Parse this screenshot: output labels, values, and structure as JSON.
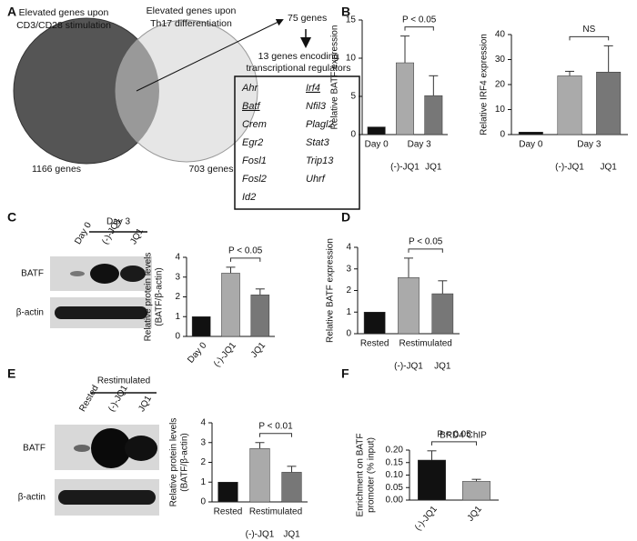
{
  "panel_labels": [
    "A",
    "B",
    "C",
    "D",
    "E",
    "F"
  ],
  "venn": {
    "left_label": [
      "Elevated genes upon",
      "CD3/CD28 stimulation"
    ],
    "right_label": [
      "Elevated genes upon",
      "Th17 differentiation"
    ],
    "left_count": "1166 genes",
    "right_count": "703 genes",
    "overlap": "75 genes",
    "subset": [
      "13 genes encoding",
      "transcriptional regulators"
    ],
    "genes_left": [
      "Ahr",
      "Batf",
      "Crem",
      "Egr2",
      "Fosl1",
      "Fosl2",
      "Id2"
    ],
    "genes_right": [
      "Irf4",
      "Nfil3",
      "Plagl2",
      "Stat3",
      "Trip13",
      "Uhrf"
    ]
  },
  "blots": [
    {
      "group": "Day 3",
      "lanes": [
        "Day 0",
        "(-)-JQ1",
        "JQ1"
      ],
      "rows": [
        "BATF",
        "β-actin"
      ]
    },
    {
      "group": "Restimulated",
      "lanes": [
        "Rested",
        "(-)-JQ1",
        "JQ1"
      ],
      "rows": [
        "BATF",
        "β-actin"
      ]
    }
  ],
  "chart_data": [
    {
      "type": "bar",
      "ylabel": [
        "Relative BATF expression"
      ],
      "categories": [
        "Day 0",
        "(-)-JQ1",
        "JQ1"
      ],
      "group_label": "Day 3",
      "values": [
        1,
        9.4,
        5.1
      ],
      "errors": [
        0,
        3.5,
        2.6
      ],
      "colors": [
        "#111111",
        "#aaaaaa",
        "#777777"
      ],
      "ylim": [
        0,
        15
      ],
      "yticks": [
        0,
        5,
        10,
        15
      ],
      "annotation": "P < 0.05"
    },
    {
      "type": "bar",
      "ylabel": [
        "Relative IRF4 expression"
      ],
      "categories": [
        "Day 0",
        "(-)-JQ1",
        "JQ1"
      ],
      "group_label": "Day 3",
      "values": [
        1,
        23.5,
        25
      ],
      "errors": [
        0,
        1.8,
        10.5
      ],
      "colors": [
        "#111111",
        "#aaaaaa",
        "#777777"
      ],
      "ylim": [
        0,
        40
      ],
      "yticks": [
        0,
        10,
        20,
        30,
        40
      ],
      "annotation": "NS"
    },
    {
      "type": "bar",
      "ylabel": [
        "Relative protein levels",
        "(BATF/β-actin)"
      ],
      "categories": [
        "Day 0",
        "(-)-JQ1",
        "JQ1"
      ],
      "values": [
        1,
        3.2,
        2.1
      ],
      "errors": [
        0,
        0.3,
        0.3
      ],
      "colors": [
        "#111111",
        "#aaaaaa",
        "#777777"
      ],
      "ylim": [
        0,
        4
      ],
      "yticks": [
        0,
        1,
        2,
        3,
        4
      ],
      "annotation": "P < 0.05",
      "rotated_labels": true
    },
    {
      "type": "bar",
      "ylabel": [
        "Relative BATF expression"
      ],
      "categories": [
        "Rested",
        "(-)-JQ1",
        "JQ1"
      ],
      "group_label": "Restimulated",
      "values": [
        1,
        2.6,
        1.85
      ],
      "errors": [
        0,
        0.9,
        0.6
      ],
      "colors": [
        "#111111",
        "#aaaaaa",
        "#777777"
      ],
      "ylim": [
        0,
        4
      ],
      "yticks": [
        0,
        1,
        2,
        3,
        4
      ],
      "annotation": "P < 0.05"
    },
    {
      "type": "bar",
      "ylabel": [
        "Relative protein levels",
        "(BATF/β-actin)"
      ],
      "categories": [
        "Rested",
        "(-)-JQ1",
        "JQ1"
      ],
      "group_label": "Restimulated",
      "values": [
        1,
        2.7,
        1.5
      ],
      "errors": [
        0,
        0.3,
        0.3
      ],
      "colors": [
        "#111111",
        "#aaaaaa",
        "#777777"
      ],
      "ylim": [
        0,
        4
      ],
      "yticks": [
        0,
        1,
        2,
        3,
        4
      ],
      "annotation": "P < 0.01"
    },
    {
      "type": "bar",
      "title": "BRD4 ChIP",
      "ylabel": [
        "Enrichment on BATF",
        "promoter (% input)"
      ],
      "categories": [
        "(-)-JQ1",
        "JQ1"
      ],
      "values": [
        0.16,
        0.075
      ],
      "errors": [
        0.037,
        0.008
      ],
      "colors": [
        "#111111",
        "#aaaaaa"
      ],
      "ylim": [
        0,
        0.2
      ],
      "yticks": [
        {
          "value": 0,
          "label": "0.00"
        },
        0.05,
        {
          "value": 0.1,
          "label": "0.10"
        },
        0.15,
        {
          "value": 0.2,
          "label": "0.20"
        }
      ],
      "annotation": "P < 0.05",
      "rotated_labels": true
    }
  ]
}
